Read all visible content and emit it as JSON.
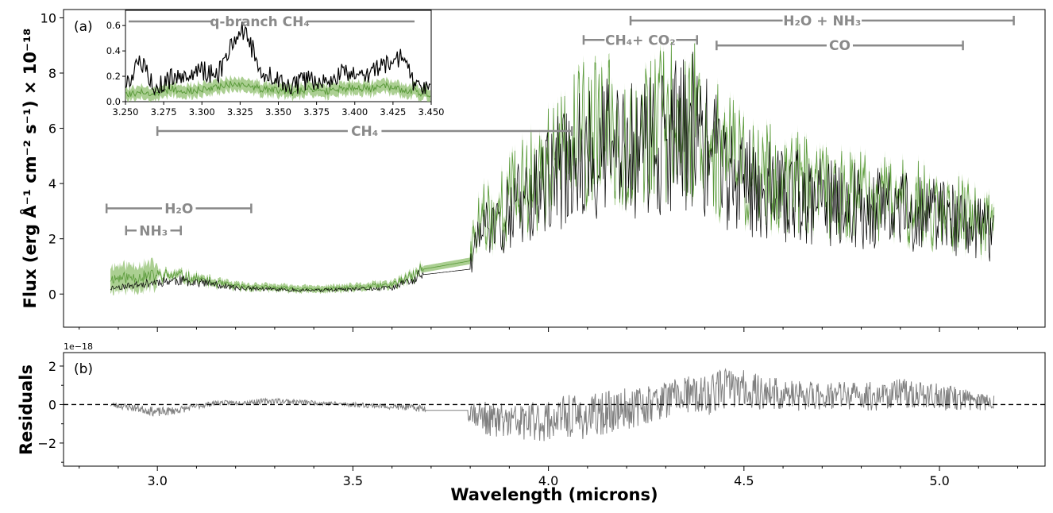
{
  "chart_data": [
    {
      "type": "line",
      "panel_label": "(a)",
      "ylabel": "Flux (erg Å⁻¹ cm⁻² s⁻¹) × 10⁻¹⁸",
      "xlim": [
        2.76,
        5.27
      ],
      "ylim": [
        -1.2,
        10.3
      ],
      "yticks": [
        0,
        2,
        4,
        6,
        8,
        10
      ],
      "grid": false,
      "gap": [
        3.68,
        3.8
      ],
      "series": [
        {
          "role": "model-band",
          "color": "#5a9a3a",
          "x": [
            2.88,
            2.95,
            3.0,
            3.05,
            3.1,
            3.15,
            3.2,
            3.3,
            3.4,
            3.5,
            3.6,
            3.66,
            3.68,
            3.8,
            3.83,
            3.86,
            3.9,
            3.95,
            4.0,
            4.05,
            4.1,
            4.15,
            4.2,
            4.25,
            4.3,
            4.35,
            4.38,
            4.4,
            4.45,
            4.5,
            4.55,
            4.6,
            4.65,
            4.7,
            4.75,
            4.8,
            4.85,
            4.9,
            4.95,
            5.0,
            5.05,
            5.1,
            5.14
          ],
          "values": [
            0.5,
            0.55,
            0.6,
            0.6,
            0.5,
            0.35,
            0.25,
            0.2,
            0.15,
            0.2,
            0.3,
            0.6,
            0.9,
            1.2,
            2.6,
            2.4,
            3.0,
            3.5,
            4.0,
            4.5,
            5.0,
            5.0,
            4.8,
            5.0,
            5.3,
            5.4,
            5.6,
            5.0,
            4.3,
            3.9,
            3.7,
            3.5,
            3.4,
            3.2,
            3.1,
            3.0,
            2.9,
            2.9,
            2.8,
            2.7,
            2.5,
            2.3,
            2.0
          ]
        },
        {
          "role": "data",
          "color": "#000000",
          "x": [
            2.88,
            2.95,
            3.0,
            3.05,
            3.1,
            3.15,
            3.2,
            3.3,
            3.4,
            3.5,
            3.6,
            3.66,
            3.68,
            3.8,
            3.83,
            3.86,
            3.9,
            3.95,
            4.0,
            4.05,
            4.1,
            4.15,
            4.2,
            4.25,
            4.3,
            4.35,
            4.38,
            4.4,
            4.45,
            4.5,
            4.55,
            4.6,
            4.65,
            4.7,
            4.75,
            4.8,
            4.85,
            4.9,
            4.95,
            5.0,
            5.05,
            5.1,
            5.14
          ],
          "values": [
            0.2,
            0.3,
            0.4,
            0.45,
            0.4,
            0.3,
            0.2,
            0.15,
            0.12,
            0.15,
            0.2,
            0.5,
            0.7,
            0.9,
            2.2,
            2.0,
            2.6,
            3.1,
            3.6,
            4.1,
            4.6,
            4.7,
            4.5,
            4.7,
            5.0,
            5.1,
            5.4,
            4.7,
            4.0,
            3.6,
            3.4,
            3.2,
            3.1,
            2.9,
            2.9,
            2.8,
            2.7,
            2.7,
            2.6,
            2.5,
            2.3,
            2.1,
            1.8
          ]
        }
      ],
      "annotations": [
        {
          "label": "H₂O + NH₃",
          "x": [
            4.21,
            5.19
          ],
          "y": 9.9
        },
        {
          "label": "CH₄+ CO₂",
          "x": [
            4.09,
            4.38
          ],
          "y": 9.2
        },
        {
          "label": "CO",
          "x": [
            4.43,
            5.06
          ],
          "y": 9.0
        },
        {
          "label": "CH₄",
          "x": [
            3.0,
            4.06
          ],
          "y": 5.9
        },
        {
          "label": "H₂O",
          "x": [
            2.87,
            3.24
          ],
          "y": 3.1
        },
        {
          "label": "NH₃",
          "x": [
            2.92,
            3.06
          ],
          "y": 2.3
        }
      ],
      "inset": {
        "title": "q-branch CH₄",
        "xlim": [
          3.25,
          3.45
        ],
        "ylim": [
          0.0,
          0.72
        ],
        "xticks": [
          "3.250",
          "3.275",
          "3.300",
          "3.325",
          "3.350",
          "3.375",
          "3.400",
          "3.425",
          "3.450"
        ],
        "yticks": [
          "0.0",
          "0.2",
          "0.4",
          "0.6"
        ],
        "x": [
          3.25,
          3.26,
          3.27,
          3.28,
          3.29,
          3.3,
          3.31,
          3.32,
          3.325,
          3.33,
          3.34,
          3.35,
          3.36,
          3.37,
          3.38,
          3.39,
          3.4,
          3.41,
          3.42,
          3.43,
          3.44,
          3.45
        ],
        "data_values": [
          0.15,
          0.3,
          0.12,
          0.18,
          0.22,
          0.25,
          0.2,
          0.45,
          0.58,
          0.5,
          0.22,
          0.17,
          0.12,
          0.18,
          0.15,
          0.22,
          0.2,
          0.22,
          0.28,
          0.35,
          0.12,
          0.13
        ],
        "model_values": [
          0.05,
          0.08,
          0.06,
          0.1,
          0.08,
          0.1,
          0.12,
          0.14,
          0.13,
          0.12,
          0.1,
          0.09,
          0.07,
          0.1,
          0.08,
          0.1,
          0.12,
          0.1,
          0.12,
          0.1,
          0.08,
          0.06
        ]
      }
    },
    {
      "type": "line",
      "panel_label": "(b)",
      "ylabel": "Residuals",
      "xlabel": "Wavelength (microns)",
      "offset_label": "1e−18",
      "xlim": [
        2.76,
        5.27
      ],
      "ylim": [
        -3.2,
        2.7
      ],
      "yticks": [
        -2,
        0,
        2
      ],
      "xticks": [
        3.0,
        3.5,
        4.0,
        4.5,
        5.0
      ],
      "zero_line": "dashed",
      "color": "#808080",
      "x": [
        2.88,
        2.95,
        3.0,
        3.05,
        3.1,
        3.15,
        3.2,
        3.3,
        3.4,
        3.5,
        3.6,
        3.68,
        3.8,
        3.85,
        3.9,
        3.95,
        4.0,
        4.05,
        4.1,
        4.15,
        4.2,
        4.25,
        4.3,
        4.35,
        4.4,
        4.45,
        4.5,
        4.55,
        4.6,
        4.65,
        4.7,
        4.75,
        4.8,
        4.85,
        4.9,
        4.95,
        5.0,
        5.05,
        5.1,
        5.14
      ],
      "values": [
        0.0,
        -0.2,
        -0.4,
        -0.3,
        -0.1,
        0.1,
        0.1,
        0.2,
        0.1,
        0.0,
        -0.1,
        -0.2,
        -0.3,
        -0.8,
        -0.9,
        -0.9,
        -0.8,
        -0.6,
        -0.7,
        -0.4,
        -0.2,
        0.0,
        0.3,
        0.5,
        0.4,
        0.9,
        0.8,
        0.6,
        0.5,
        0.4,
        0.5,
        0.5,
        0.4,
        0.5,
        0.6,
        0.5,
        0.4,
        0.3,
        0.2,
        0.2
      ],
      "amplitude": [
        0.15,
        0.2,
        0.25,
        0.2,
        0.15,
        0.12,
        0.12,
        0.15,
        0.12,
        0.12,
        0.15,
        0.2,
        0.6,
        0.9,
        1.0,
        1.0,
        1.1,
        1.1,
        1.2,
        1.1,
        1.1,
        1.0,
        1.0,
        1.0,
        1.1,
        1.1,
        1.0,
        0.9,
        0.9,
        0.8,
        0.8,
        0.8,
        0.8,
        0.8,
        0.8,
        0.7,
        0.7,
        0.6,
        0.5,
        0.5
      ]
    }
  ]
}
